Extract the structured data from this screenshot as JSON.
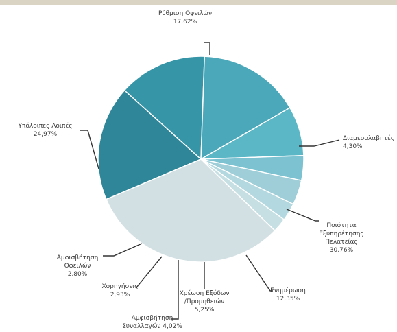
{
  "chart_data": {
    "type": "pie",
    "slices": [
      {
        "label": [
          "Ρύθμιση Οφειλών",
          "17,62%"
        ],
        "value": 17.62,
        "color": "#2e8698"
      },
      {
        "label": [
          "Διαμεσολαβητές",
          "4,30%"
        ],
        "value": 4.3,
        "color": "#3795a8"
      },
      {
        "label": [
          "Ποιότητα",
          "Εξυπηρέτησης",
          "Πελατείας",
          "30,76%"
        ],
        "value": 30.76,
        "color": "#4aa8ba"
      },
      {
        "label": [
          "Ενημέρωση",
          "12,35%"
        ],
        "value": 12.35,
        "color": "#5bb6c6"
      },
      {
        "label": [
          "Χρέωση Εξόδων",
          "/Προμηθειών",
          "5,25%"
        ],
        "value": 5.25,
        "color": "#7cc2d0"
      },
      {
        "label": [
          "Αμφισβήτηση",
          "Συναλλαγών 4,02%"
        ],
        "value": 4.02,
        "color": "#9fced8"
      },
      {
        "label": [
          "Χορηγήσεις",
          "2,93%"
        ],
        "value": 2.93,
        "color": "#b3d8df"
      },
      {
        "label": [
          "Αμφισβήτηση",
          "Οφειλών",
          "2,80%"
        ],
        "value": 2.8,
        "color": "#c5dfe3"
      },
      {
        "label": [
          "Υπόλοιπες Λοιπές",
          "24,97%"
        ],
        "value": 24.97,
        "color": "#d3e0e3"
      }
    ],
    "colors": {
      "background": "#ffffff",
      "top_strip": "#d9d4c3",
      "leader_line": "#333333"
    }
  }
}
